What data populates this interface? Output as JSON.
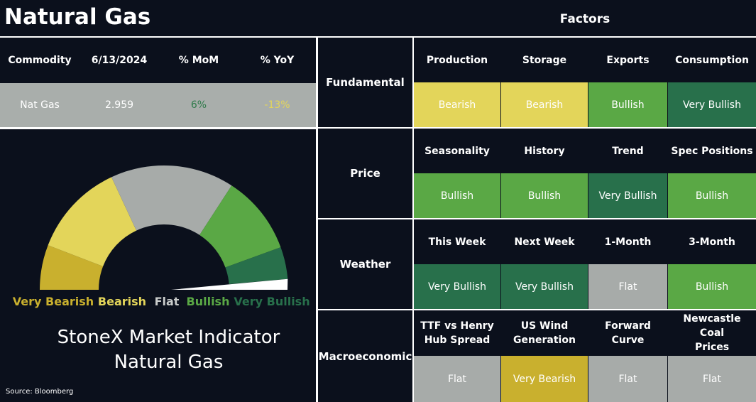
{
  "title": "Natural Gas",
  "factors_title": "Factors",
  "commodity_table": {
    "headers": [
      "Commodity",
      "6/13/2024",
      "% MoM",
      "% YoY"
    ],
    "row": [
      "Nat Gas",
      "2.959",
      "6%",
      "-13%"
    ],
    "row_colors": [
      "#ffffff",
      "#ffffff",
      "#2f7a4a",
      "#e3d55a"
    ]
  },
  "gauge": {
    "labels": [
      "Very Bearish",
      "Bearish",
      "Flat",
      "Bullish",
      "Very Bullish"
    ]
  },
  "signal_colors": {
    "Very Bearish": "#c9b02e",
    "Bearish": "#e3d55a",
    "Flat": "#a7aba9",
    "Bullish": "#5aa845",
    "Very Bullish": "#28704b"
  },
  "indicator_title": [
    "StoneX Market Indicator",
    "Natural Gas"
  ],
  "source": "Source: Bloomberg",
  "factors": [
    {
      "group": "Fundamental",
      "items": [
        {
          "name": "Production",
          "signal": "Bearish"
        },
        {
          "name": "Storage",
          "signal": "Bearish"
        },
        {
          "name": "Exports",
          "signal": "Bullish"
        },
        {
          "name": "Consumption",
          "signal": "Very Bullish"
        }
      ]
    },
    {
      "group": "Price",
      "items": [
        {
          "name": "Seasonality",
          "signal": "Bullish"
        },
        {
          "name": "History",
          "signal": "Bullish"
        },
        {
          "name": "Trend",
          "signal": "Very Bullish"
        },
        {
          "name": "Spec Positions",
          "signal": "Bullish"
        }
      ]
    },
    {
      "group": "Weather",
      "items": [
        {
          "name": "This Week",
          "signal": "Very Bullish"
        },
        {
          "name": "Next Week",
          "signal": "Very Bullish"
        },
        {
          "name": "1-Month",
          "signal": "Flat"
        },
        {
          "name": "3-Month",
          "signal": "Bullish"
        }
      ]
    },
    {
      "group": "Macroeconomic",
      "items": [
        {
          "name": "TTF vs Henry\nHub Spread",
          "signal": "Flat"
        },
        {
          "name": "US Wind\nGeneration",
          "signal": "Very Bearish"
        },
        {
          "name": "Forward\nCurve",
          "signal": "Flat"
        },
        {
          "name": "Newcastle Coal\nPrices",
          "signal": "Flat"
        }
      ]
    }
  ]
}
